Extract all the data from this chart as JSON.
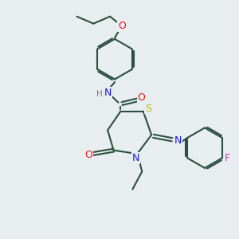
{
  "bg_color": "#e8edf0",
  "bond_color": "#2a5040",
  "lw": 1.5,
  "fs": 9,
  "atom_colors": {
    "N": "#1515ee",
    "O": "#ee1515",
    "S": "#bbbb00",
    "F": "#cc44bb",
    "H": "#777788"
  }
}
